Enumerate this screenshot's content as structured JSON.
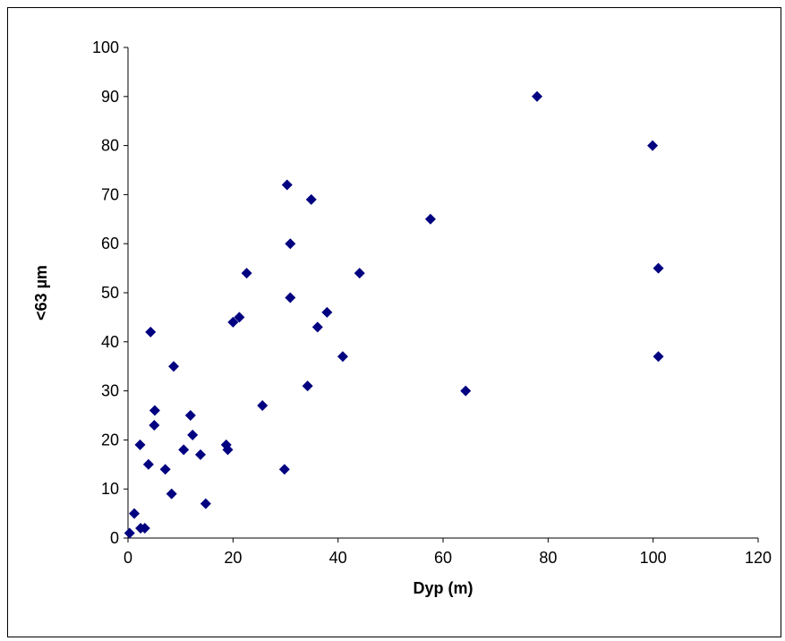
{
  "chart_data": {
    "type": "scatter",
    "title": "",
    "xlabel": "Dyp (m)",
    "ylabel": "<63 µm",
    "xlim": [
      0,
      120
    ],
    "ylim": [
      0,
      100
    ],
    "xticks": [
      "0",
      "20",
      "40",
      "60",
      "80",
      "100",
      "120"
    ],
    "yticks": [
      "0",
      "10",
      "20",
      "30",
      "40",
      "50",
      "60",
      "70",
      "80",
      "90",
      "100"
    ],
    "grid": false,
    "legend": "none",
    "marker": "diamond",
    "marker_color": "#000080",
    "series": [
      {
        "points": [
          {
            "x": 0.3,
            "y": 1
          },
          {
            "x": 1.2,
            "y": 5
          },
          {
            "x": 2.3,
            "y": 19
          },
          {
            "x": 2.4,
            "y": 2
          },
          {
            "x": 3.2,
            "y": 2
          },
          {
            "x": 3.9,
            "y": 15
          },
          {
            "x": 4.3,
            "y": 42
          },
          {
            "x": 5.0,
            "y": 23
          },
          {
            "x": 5.1,
            "y": 26
          },
          {
            "x": 7.1,
            "y": 14
          },
          {
            "x": 8.3,
            "y": 9
          },
          {
            "x": 8.7,
            "y": 35
          },
          {
            "x": 10.6,
            "y": 18
          },
          {
            "x": 11.9,
            "y": 25
          },
          {
            "x": 12.3,
            "y": 21
          },
          {
            "x": 13.8,
            "y": 17
          },
          {
            "x": 14.8,
            "y": 7
          },
          {
            "x": 18.7,
            "y": 19
          },
          {
            "x": 19.0,
            "y": 18
          },
          {
            "x": 20.0,
            "y": 44
          },
          {
            "x": 21.2,
            "y": 45
          },
          {
            "x": 22.6,
            "y": 54
          },
          {
            "x": 25.6,
            "y": 27
          },
          {
            "x": 29.8,
            "y": 14
          },
          {
            "x": 30.3,
            "y": 72
          },
          {
            "x": 30.9,
            "y": 60
          },
          {
            "x": 30.9,
            "y": 49
          },
          {
            "x": 34.2,
            "y": 31
          },
          {
            "x": 34.9,
            "y": 69
          },
          {
            "x": 36.1,
            "y": 43
          },
          {
            "x": 37.9,
            "y": 46
          },
          {
            "x": 40.9,
            "y": 37
          },
          {
            "x": 44.1,
            "y": 54
          },
          {
            "x": 57.6,
            "y": 65
          },
          {
            "x": 64.3,
            "y": 30
          },
          {
            "x": 77.9,
            "y": 90
          },
          {
            "x": 99.9,
            "y": 80
          },
          {
            "x": 101.0,
            "y": 55
          },
          {
            "x": 101.0,
            "y": 37
          }
        ]
      }
    ]
  }
}
